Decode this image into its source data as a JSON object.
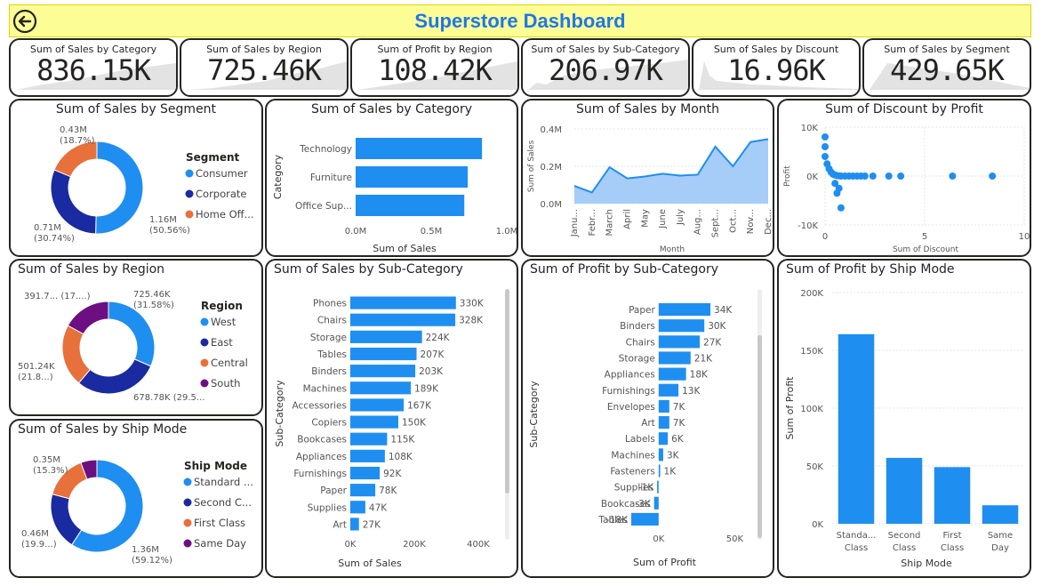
{
  "dashboard": {
    "title": "Superstore Dashboard",
    "back_icon": "arrow-left-circle-icon"
  },
  "kpis": [
    {
      "title": "Sum of Sales by Category",
      "value": "836.15K"
    },
    {
      "title": "Sum of Sales by Region",
      "value": "725.46K"
    },
    {
      "title": "Sum of Profit by Region",
      "value": "108.42K"
    },
    {
      "title": "Sum of Sales by Sub-Category",
      "value": "206.97K"
    },
    {
      "title": "Sum of Sales by Discount",
      "value": "16.96K"
    },
    {
      "title": "Sum of Sales by Segment",
      "value": "429.65K"
    }
  ],
  "colors": {
    "blue": "#1f8ef1",
    "navy": "#1a2aa0",
    "orange": "#e8703a",
    "purple": "#6b0f82",
    "area": "#a6cdf7"
  },
  "segment_donut": {
    "title": "Sum of Sales by Segment",
    "legend_title": "Segment",
    "items": [
      {
        "name": "Consumer",
        "value": 1.16,
        "label1": "1.16M",
        "label2": "(50.56%)"
      },
      {
        "name": "Corporate",
        "value": 0.71,
        "label1": "0.71M",
        "label2": "(30.74%)"
      },
      {
        "name": "Home Off...",
        "value": 0.43,
        "label1": "0.43M",
        "label2": "(18.7%)"
      }
    ]
  },
  "region_donut": {
    "title": "Sum of Sales by Region",
    "legend_title": "Region",
    "items": [
      {
        "name": "West",
        "value": 725.46,
        "label1": "725.46K",
        "label2": "(31.58%)"
      },
      {
        "name": "East",
        "value": 678.78,
        "label1": "678.78K (29.5...",
        "label2": ""
      },
      {
        "name": "Central",
        "value": 501.24,
        "label1": "501.24K",
        "label2": "(21.8...)"
      },
      {
        "name": "South",
        "value": 391.7,
        "label1": "391.7... (17....)",
        "label2": ""
      }
    ]
  },
  "shipmode_donut": {
    "title": "Sum of Sales by Ship Mode",
    "legend_title": "Ship Mode",
    "items": [
      {
        "name": "Standard ...",
        "value": 1.36,
        "label1": "1.36M",
        "label2": "(59.12%)"
      },
      {
        "name": "Second C...",
        "value": 0.46,
        "label1": "0.46M",
        "label2": "(19.9...)"
      },
      {
        "name": "First Class",
        "value": 0.35,
        "label1": "0.35M",
        "label2": "(15.3%)"
      },
      {
        "name": "Same Day",
        "value": 0.13,
        "label1": "",
        "label2": ""
      }
    ]
  },
  "chart_data": [
    {
      "type": "bar",
      "title": "Sum of Sales by Category",
      "categories": [
        "Technology",
        "Furniture",
        "Office Sup..."
      ],
      "values": [
        836154,
        741999,
        719047
      ],
      "xlabel": "Sum of Sales",
      "ylabel": "Category",
      "xticks": [
        "0.0M",
        "0.5M",
        "1.0M"
      ],
      "xlim": [
        0,
        1000000
      ]
    },
    {
      "type": "area",
      "title": "Sum of Sales by Month",
      "categories": [
        "Janu...",
        "Febr...",
        "March",
        "April",
        "May",
        "June",
        "July",
        "Aug...",
        "Sept...",
        "Oct...",
        "Nov...",
        "Dec..."
      ],
      "values": [
        95000,
        60000,
        195000,
        135000,
        145000,
        160000,
        150000,
        155000,
        305000,
        200000,
        330000,
        345000
      ],
      "xlabel": "Month",
      "ylabel": "Sum of Sales",
      "yticks": [
        "0.0M",
        "0.2M",
        "0.4M"
      ],
      "ylim": [
        0,
        400000
      ]
    },
    {
      "type": "scatter",
      "title": "Sum of Discount by Profit",
      "x": [
        0,
        0,
        0,
        0.1,
        0.2,
        0.3,
        0.4,
        0.5,
        0.6,
        0.7,
        0.8,
        1.0,
        1.2,
        1.4,
        1.6,
        1.8,
        2.0,
        2.4,
        3.2,
        3.8,
        6.4,
        8.4,
        0.7,
        0.5,
        0.6,
        0.8
      ],
      "y": [
        8000,
        6000,
        4000,
        2500,
        1500,
        800,
        400,
        200,
        100,
        50,
        0,
        0,
        0,
        0,
        0,
        0,
        0,
        0,
        0,
        0,
        0,
        0,
        -2500,
        -1500,
        -3500,
        -6500
      ],
      "xlabel": "Sum of Discount",
      "ylabel": "Profit",
      "xticks": [
        "0",
        "5",
        "10"
      ],
      "yticks": [
        "10K",
        "0K",
        "-10K"
      ],
      "xlim": [
        0,
        10
      ],
      "ylim": [
        -10000,
        10000
      ]
    },
    {
      "type": "bar",
      "title": "Sum of Sales by Sub-Category",
      "categories": [
        "Phones",
        "Chairs",
        "Storage",
        "Tables",
        "Binders",
        "Machines",
        "Accessories",
        "Copiers",
        "Bookcases",
        "Appliances",
        "Furnishings",
        "Paper",
        "Supplies",
        "Art"
      ],
      "values": [
        330000,
        328000,
        224000,
        207000,
        203000,
        189000,
        167000,
        150000,
        115000,
        108000,
        92000,
        78000,
        47000,
        27000
      ],
      "data_labels": [
        "330K",
        "328K",
        "224K",
        "207K",
        "203K",
        "189K",
        "167K",
        "150K",
        "115K",
        "108K",
        "92K",
        "78K",
        "47K",
        "27K"
      ],
      "xlabel": "Sum of Sales",
      "ylabel": "Sub-Category",
      "xticks": [
        "0K",
        "200K",
        "400K"
      ],
      "xlim": [
        0,
        400000
      ]
    },
    {
      "type": "bar",
      "title": "Sum of Profit by Sub-Category",
      "categories": [
        "Paper",
        "Binders",
        "Chairs",
        "Storage",
        "Appliances",
        "Furnishings",
        "Envelopes",
        "Art",
        "Labels",
        "Machines",
        "Fasteners",
        "Supplies",
        "Bookcases",
        "Tables"
      ],
      "values": [
        34000,
        30000,
        27000,
        21000,
        18000,
        13000,
        7000,
        7000,
        6000,
        3000,
        1000,
        -1000,
        -3000,
        -18000
      ],
      "data_labels": [
        "34K",
        "30K",
        "27K",
        "21K",
        "18K",
        "13K",
        "7K",
        "7K",
        "6K",
        "3K",
        "1K",
        "-1K",
        "-3K",
        "-18K"
      ],
      "xlabel": "Sum of Profit",
      "ylabel": "Sub-Category",
      "xticks": [
        "0K",
        "50K"
      ],
      "xlim": [
        -18000,
        55000
      ]
    },
    {
      "type": "bar",
      "title": "Sum of Profit by Ship Mode",
      "categories": [
        "Standa... Class",
        "Second Class",
        "First Class",
        "Same Day"
      ],
      "values": [
        164000,
        57000,
        49000,
        16000
      ],
      "xlabel": "Ship Mode",
      "ylabel": "Sum of Profit",
      "yticks": [
        "0K",
        "50K",
        "100K",
        "150K",
        "200K"
      ],
      "ylim": [
        0,
        200000
      ]
    }
  ]
}
